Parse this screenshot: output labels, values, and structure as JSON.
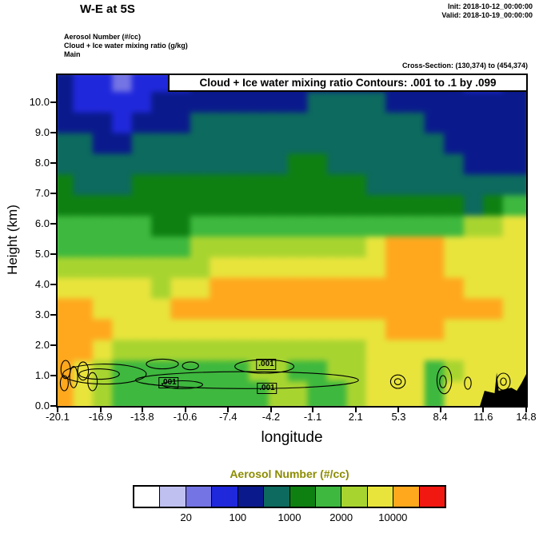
{
  "header": {
    "title": "W-E at 5S",
    "init_line": "Init: 2018-10-12_00:00:00",
    "valid_line": "Valid: 2018-10-19_00:00:00",
    "field_lines": [
      "Aerosol Number (#/cc)",
      "Cloud + Ice water mixing ratio (g/kg)",
      "Main"
    ],
    "cross_section": "Cross-Section: (130,374) to (454,374)"
  },
  "chart_data": {
    "type": "heatmap",
    "overlay_title": "Cloud + Ice water mixing ratio Contours: .001 to .1 by .099",
    "xlabel": "longitude",
    "ylabel": "Height (km)",
    "xlim": [
      -20.1,
      14.8
    ],
    "ylim": [
      0,
      10.89
    ],
    "x_ticks": [
      "-20.1",
      "-16.9",
      "-13.8",
      "-10.6",
      "-7.4",
      "-4.2",
      "-1.1",
      "2.1",
      "5.3",
      "8.4",
      "11.6",
      "14.8"
    ],
    "y_ticks": [
      "0.0",
      "1.0",
      "2.0",
      "3.0",
      "4.0",
      "5.0",
      "6.0",
      "7.0",
      "8.0",
      "9.0",
      "10.0"
    ],
    "legend": {
      "title": "Aerosol Number (#/cc)",
      "title_color": "#8c8c00",
      "colors": [
        "#ffffff",
        "#c0c0f0",
        "#7474e4",
        "#2028dc",
        "#0a1a8c",
        "#0c6a5e",
        "#0e8012",
        "#3eb83e",
        "#a8d430",
        "#e8e43c",
        "#ffa81e",
        "#f01810"
      ],
      "boundary_labels": [
        {
          "index": 2,
          "label": "20"
        },
        {
          "index": 4,
          "label": "100"
        },
        {
          "index": 6,
          "label": "1000"
        },
        {
          "index": 8,
          "label": "2000"
        },
        {
          "index": 10,
          "label": "10000"
        }
      ]
    },
    "grid": {
      "cols": 24,
      "rows": 16,
      "comment_units": "values are indices into legend.colors; rows top-to-bottom from 10.89 km to 0 km, cols left-to-right from lon -20.1 to 14.8",
      "values": [
        [
          4,
          3,
          3,
          2,
          3,
          3,
          3,
          4,
          4,
          4,
          4,
          4,
          4,
          4,
          4,
          4,
          4,
          4,
          4,
          4,
          4,
          3,
          3,
          4
        ],
        [
          4,
          3,
          3,
          3,
          3,
          4,
          4,
          4,
          4,
          4,
          4,
          4,
          4,
          5,
          5,
          5,
          5,
          4,
          4,
          4,
          4,
          4,
          4,
          4
        ],
        [
          4,
          4,
          4,
          3,
          4,
          4,
          4,
          5,
          5,
          5,
          5,
          5,
          5,
          5,
          5,
          5,
          5,
          5,
          5,
          4,
          4,
          4,
          4,
          4
        ],
        [
          5,
          5,
          4,
          4,
          5,
          5,
          5,
          5,
          5,
          5,
          5,
          5,
          5,
          5,
          5,
          5,
          5,
          5,
          5,
          5,
          4,
          4,
          4,
          4
        ],
        [
          5,
          5,
          5,
          5,
          5,
          5,
          5,
          5,
          5,
          5,
          5,
          5,
          6,
          6,
          5,
          5,
          5,
          5,
          5,
          5,
          5,
          4,
          4,
          4
        ],
        [
          6,
          5,
          5,
          5,
          6,
          6,
          6,
          6,
          6,
          6,
          6,
          6,
          6,
          6,
          6,
          6,
          5,
          5,
          5,
          5,
          5,
          5,
          5,
          5
        ],
        [
          6,
          6,
          6,
          6,
          6,
          6,
          6,
          6,
          6,
          6,
          6,
          6,
          6,
          6,
          6,
          6,
          6,
          6,
          6,
          6,
          6,
          5,
          6,
          7
        ],
        [
          7,
          7,
          7,
          7,
          7,
          6,
          6,
          7,
          7,
          7,
          7,
          7,
          7,
          7,
          7,
          7,
          7,
          7,
          7,
          7,
          7,
          8,
          8,
          9
        ],
        [
          7,
          7,
          7,
          7,
          7,
          7,
          7,
          8,
          8,
          8,
          8,
          8,
          8,
          8,
          8,
          8,
          9,
          10,
          10,
          10,
          9,
          9,
          9,
          9
        ],
        [
          8,
          8,
          8,
          8,
          8,
          8,
          8,
          8,
          9,
          9,
          9,
          9,
          9,
          9,
          9,
          9,
          9,
          10,
          10,
          10,
          9,
          9,
          9,
          9
        ],
        [
          9,
          9,
          9,
          9,
          9,
          8,
          9,
          9,
          10,
          10,
          10,
          10,
          10,
          10,
          10,
          10,
          10,
          10,
          10,
          10,
          10,
          9,
          9,
          9
        ],
        [
          10,
          10,
          9,
          9,
          9,
          9,
          10,
          10,
          10,
          10,
          10,
          10,
          10,
          10,
          10,
          10,
          10,
          10,
          10,
          10,
          10,
          10,
          10,
          9
        ],
        [
          10,
          10,
          10,
          9,
          9,
          9,
          9,
          9,
          9,
          9,
          9,
          9,
          9,
          9,
          9,
          9,
          9,
          10,
          10,
          10,
          9,
          9,
          9,
          9
        ],
        [
          10,
          10,
          9,
          8,
          8,
          8,
          8,
          8,
          8,
          8,
          8,
          8,
          8,
          8,
          8,
          8,
          9,
          9,
          9,
          9,
          9,
          9,
          9,
          9
        ],
        [
          10,
          9,
          8,
          7,
          7,
          7,
          7,
          7,
          7,
          7,
          8,
          8,
          7,
          7,
          8,
          8,
          9,
          9,
          9,
          7,
          8,
          9,
          9,
          9
        ],
        [
          10,
          9,
          8,
          7,
          7,
          7,
          7,
          7,
          7,
          7,
          7,
          8,
          8,
          7,
          7,
          8,
          9,
          9,
          9,
          7,
          9,
          9,
          9,
          9
        ]
      ]
    },
    "contours": {
      "level_label": ".001",
      "ellipses": [
        [
          -16.6,
          1.05,
          3.1,
          0.33
        ],
        [
          -17.0,
          1.05,
          1.5,
          0.17
        ],
        [
          -6.0,
          0.85,
          8.3,
          0.28
        ],
        [
          -10.8,
          0.7,
          1.5,
          0.13
        ],
        [
          -4.7,
          1.3,
          2.2,
          0.22
        ],
        [
          -12.3,
          1.38,
          1.2,
          0.16
        ],
        [
          -10.2,
          1.32,
          0.6,
          0.13
        ],
        [
          -19.5,
          1.2,
          0.35,
          0.3
        ],
        [
          -18.9,
          0.95,
          0.3,
          0.35
        ],
        [
          -19.6,
          0.75,
          0.3,
          0.25
        ],
        [
          -18.2,
          1.15,
          0.4,
          0.3
        ],
        [
          -17.5,
          0.8,
          0.35,
          0.3
        ],
        [
          5.25,
          0.8,
          0.55,
          0.22
        ],
        [
          5.25,
          0.8,
          0.25,
          0.1
        ],
        [
          8.7,
          0.85,
          0.55,
          0.45
        ],
        [
          8.6,
          0.8,
          0.25,
          0.2
        ],
        [
          10.45,
          0.75,
          0.25,
          0.2
        ],
        [
          13.1,
          0.8,
          0.5,
          0.28
        ],
        [
          13.1,
          0.8,
          0.22,
          0.12
        ]
      ],
      "labels": [
        {
          "lon": -11.8,
          "km": 0.76
        },
        {
          "lon": -4.55,
          "km": 1.38
        },
        {
          "lon": -4.5,
          "km": 0.58
        }
      ]
    },
    "terrain": [
      [
        11.35,
        0
      ],
      [
        11.7,
        0.5
      ],
      [
        12.15,
        0.45
      ],
      [
        12.45,
        0.42
      ],
      [
        12.6,
        1.1
      ],
      [
        12.75,
        0.5
      ],
      [
        13.2,
        0.55
      ],
      [
        13.7,
        0.6
      ],
      [
        14.1,
        0.5
      ],
      [
        14.45,
        0.75
      ],
      [
        14.8,
        1.05
      ],
      [
        14.8,
        0
      ]
    ]
  }
}
